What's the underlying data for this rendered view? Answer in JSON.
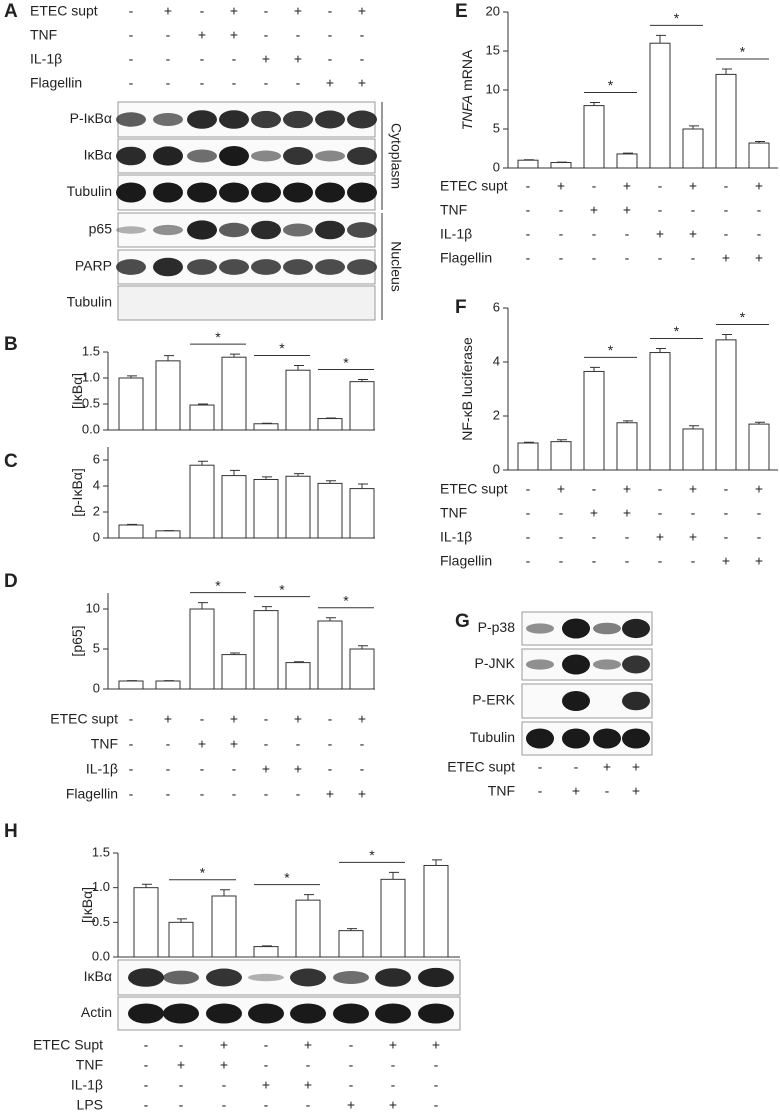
{
  "chart_data": [
    {
      "type": "bar",
      "panel": "B",
      "ylabel": "[IκBα]",
      "color": "#ffffff",
      "values": [
        1.0,
        1.33,
        0.48,
        1.4,
        0.12,
        1.15,
        0.22,
        0.93
      ],
      "errors": [
        0.04,
        0.1,
        0.02,
        0.06,
        0.01,
        0.09,
        0.01,
        0.04
      ],
      "ylim": [
        0,
        1.5
      ],
      "yticks": [
        {
          "value": 0,
          "label": "0.0"
        },
        0.5,
        {
          "value": 1,
          "label": "1.0"
        },
        1.5
      ],
      "significance": [
        {
          "bars": [
            2,
            3
          ],
          "label": "*"
        },
        {
          "bars": [
            4,
            5
          ],
          "label": "*"
        },
        {
          "bars": [
            6,
            7
          ],
          "label": "*"
        }
      ]
    },
    {
      "type": "bar",
      "panel": "C",
      "ylabel": "[p-IκBα]",
      "color": "#ffffff",
      "values": [
        1.0,
        0.55,
        5.6,
        4.8,
        4.5,
        4.75,
        4.2,
        3.8
      ],
      "errors": [
        0.05,
        0.02,
        0.3,
        0.4,
        0.2,
        0.2,
        0.2,
        0.35
      ],
      "ylim": [
        0,
        7
      ],
      "yticks": [
        0,
        2,
        4,
        6
      ],
      "significance": []
    },
    {
      "type": "bar",
      "panel": "D",
      "ylabel": "[p65]",
      "color": "#ffffff",
      "values": [
        1.0,
        1.0,
        10.0,
        4.3,
        9.8,
        3.3,
        8.5,
        5.0
      ],
      "errors": [
        0.05,
        0.05,
        0.8,
        0.2,
        0.5,
        0.1,
        0.4,
        0.4
      ],
      "ylim": [
        0,
        12
      ],
      "yticks": [
        0,
        5,
        10
      ],
      "significance": [
        {
          "bars": [
            2,
            3
          ],
          "label": "*"
        },
        {
          "bars": [
            4,
            5
          ],
          "label": "*"
        },
        {
          "bars": [
            6,
            7
          ],
          "label": "*"
        }
      ]
    },
    {
      "type": "bar",
      "panel": "E",
      "ylabel_italic": "TNFA",
      "ylabel": "mRNA",
      "color": "#ffffff",
      "values": [
        1.0,
        0.7,
        8.0,
        1.8,
        16.0,
        5.0,
        12.0,
        3.2
      ],
      "errors": [
        0.05,
        0.05,
        0.4,
        0.1,
        1.0,
        0.4,
        0.7,
        0.2
      ],
      "ylim": [
        0,
        20
      ],
      "yticks": [
        0,
        5,
        10,
        15,
        20
      ],
      "significance": [
        {
          "bars": [
            2,
            3
          ],
          "label": "*"
        },
        {
          "bars": [
            4,
            5
          ],
          "label": "*"
        },
        {
          "bars": [
            6,
            7
          ],
          "label": "*"
        }
      ]
    },
    {
      "type": "bar",
      "panel": "F",
      "ylabel": "NF-κB luciferase",
      "color": "#ffffff",
      "values": [
        1.0,
        1.05,
        3.65,
        1.75,
        4.35,
        1.52,
        4.82,
        1.7
      ],
      "errors": [
        0.03,
        0.07,
        0.15,
        0.07,
        0.15,
        0.12,
        0.2,
        0.07
      ],
      "ylim": [
        0,
        6
      ],
      "yticks": [
        0,
        2,
        4,
        6
      ],
      "significance": [
        {
          "bars": [
            2,
            3
          ],
          "label": "*"
        },
        {
          "bars": [
            4,
            5
          ],
          "label": "*"
        },
        {
          "bars": [
            6,
            7
          ],
          "label": "*"
        }
      ]
    },
    {
      "type": "bar",
      "panel": "H",
      "ylabel": "[IκBα]",
      "color": "#ffffff",
      "values": [
        1.0,
        0.5,
        0.88,
        0.15,
        0.82,
        0.38,
        1.12,
        1.32
      ],
      "errors": [
        0.05,
        0.05,
        0.09,
        0.01,
        0.08,
        0.03,
        0.1,
        0.08
      ],
      "ylim": [
        0,
        1.5
      ],
      "yticks": [
        {
          "value": 0,
          "label": "0.0"
        },
        0.5,
        {
          "value": 1,
          "label": "1.0"
        },
        1.5
      ],
      "significance": [
        {
          "bars": [
            1,
            2
          ],
          "label": "*"
        },
        {
          "bars": [
            3,
            4
          ],
          "label": "*"
        },
        {
          "bars": [
            5,
            6
          ],
          "label": "*"
        }
      ]
    }
  ],
  "panel_A": {
    "label": "A",
    "conditions": [
      {
        "name": "ETEC supt",
        "signs": [
          "-",
          "+",
          "-",
          "+",
          "-",
          "+",
          "-",
          "+"
        ]
      },
      {
        "name": "TNF",
        "signs": [
          "-",
          "-",
          "+",
          "+",
          "-",
          "-",
          "-",
          "-"
        ]
      },
      {
        "name": "IL-1β",
        "signs": [
          "-",
          "-",
          "-",
          "-",
          "+",
          "+",
          "-",
          "-"
        ]
      },
      {
        "name": "Flagellin",
        "signs": [
          "-",
          "-",
          "-",
          "-",
          "-",
          "-",
          "+",
          "+"
        ]
      }
    ],
    "blots": [
      "P-IκBα",
      "IκBα",
      "Tubulin",
      "p65",
      "PARP",
      "Tubulin"
    ],
    "compartments": [
      "Cytoplasm",
      "Nucleus"
    ]
  },
  "conditions_BCD": [
    {
      "name": "ETEC supt",
      "signs": [
        "-",
        "+",
        "-",
        "+",
        "-",
        "+",
        "-",
        "+"
      ]
    },
    {
      "name": "TNF",
      "signs": [
        "-",
        "-",
        "+",
        "+",
        "-",
        "-",
        "-",
        "-"
      ]
    },
    {
      "name": "IL-1β",
      "signs": [
        "-",
        "-",
        "-",
        "-",
        "+",
        "+",
        "-",
        "-"
      ]
    },
    {
      "name": "Flagellin",
      "signs": [
        "-",
        "-",
        "-",
        "-",
        "-",
        "-",
        "+",
        "+"
      ]
    }
  ],
  "conditions_E": [
    {
      "name": "ETEC supt",
      "signs": [
        "-",
        "+",
        "-",
        "+",
        "-",
        "+",
        "-",
        "+"
      ]
    },
    {
      "name": "TNF",
      "signs": [
        "-",
        "-",
        "+",
        "+",
        "-",
        "-",
        "-",
        "-"
      ]
    },
    {
      "name": "IL-1β",
      "signs": [
        "-",
        "-",
        "-",
        "-",
        "+",
        "+",
        "-",
        "-"
      ]
    },
    {
      "name": "Flagellin",
      "signs": [
        "-",
        "-",
        "-",
        "-",
        "-",
        "-",
        "+",
        "+"
      ]
    }
  ],
  "conditions_F": [
    {
      "name": "ETEC supt",
      "signs": [
        "-",
        "+",
        "-",
        "+",
        "-",
        "+",
        "-",
        "+"
      ]
    },
    {
      "name": "TNF",
      "signs": [
        "-",
        "-",
        "+",
        "+",
        "-",
        "-",
        "-",
        "-"
      ]
    },
    {
      "name": "IL-1β",
      "signs": [
        "-",
        "-",
        "-",
        "-",
        "+",
        "+",
        "-",
        "-"
      ]
    },
    {
      "name": "Flagellin",
      "signs": [
        "-",
        "-",
        "-",
        "-",
        "-",
        "-",
        "+",
        "+"
      ]
    }
  ],
  "panel_G": {
    "label": "G",
    "blots": [
      "P-p38",
      "P-JNK",
      "P-ERK",
      "Tubulin"
    ],
    "conditions": [
      {
        "name": "ETEC supt",
        "signs": [
          "-",
          "-",
          "+",
          "+"
        ]
      },
      {
        "name": "TNF",
        "signs": [
          "-",
          "+",
          "-",
          "+"
        ]
      }
    ]
  },
  "panel_H_blots": {
    "blots": [
      "IκBα",
      "Actin"
    ],
    "conditions": [
      {
        "name": "ETEC Supt",
        "signs": [
          "-",
          "-",
          "+",
          "-",
          "+",
          "-",
          "+",
          "+"
        ]
      },
      {
        "name": "TNF",
        "signs": [
          "-",
          "+",
          "+",
          "-",
          "-",
          "-",
          "-",
          "-"
        ]
      },
      {
        "name": "IL-1β",
        "signs": [
          "-",
          "-",
          "-",
          "+",
          "+",
          "-",
          "-",
          "-"
        ]
      },
      {
        "name": "LPS",
        "signs": [
          "-",
          "-",
          "-",
          "-",
          "-",
          "+",
          "+",
          "-"
        ]
      }
    ]
  }
}
